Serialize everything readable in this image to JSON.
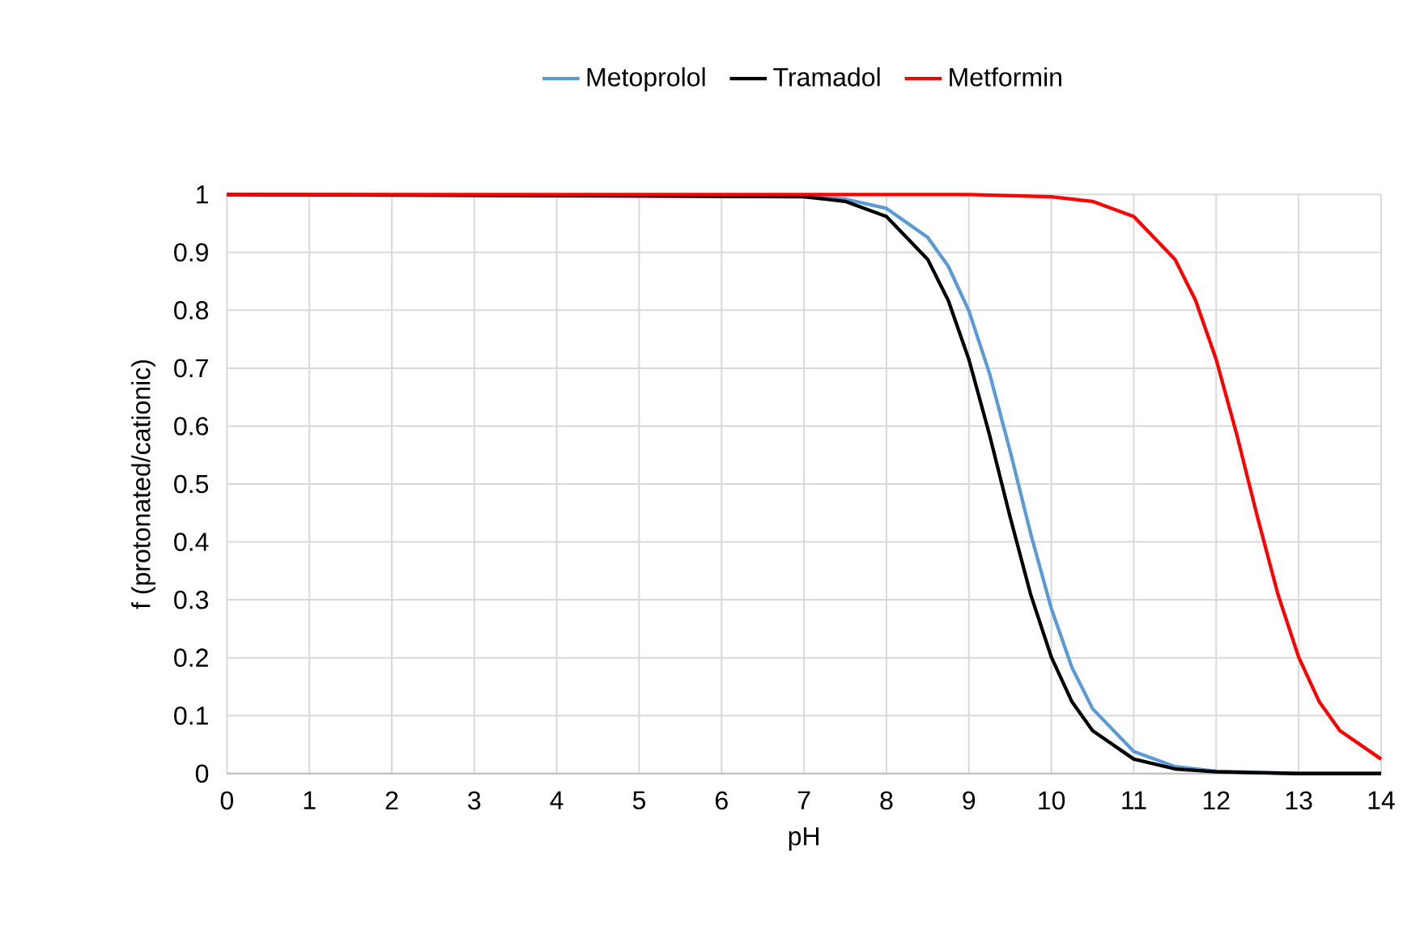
{
  "chart_data": {
    "type": "line",
    "xlabel": "pH",
    "ylabel": "f (protonated/cationic)",
    "xlim": [
      0,
      14
    ],
    "xticks": [
      0,
      1,
      2,
      3,
      4,
      5,
      6,
      7,
      8,
      9,
      10,
      11,
      12,
      13,
      14
    ],
    "ylim": [
      0,
      1
    ],
    "yticks": [
      0,
      0.1,
      0.2,
      0.3,
      0.4,
      0.5,
      0.6,
      0.7,
      0.8,
      0.9,
      1
    ],
    "grid": true,
    "legend": "top",
    "marker": "none",
    "line_style": "solid",
    "series": [
      {
        "name": "Metoprolol",
        "color": "#5b9bd5",
        "x": [
          0,
          7,
          7.5,
          8,
          8.5,
          8.75,
          9,
          9.25,
          9.5,
          9.75,
          10,
          10.25,
          10.5,
          11,
          11.5,
          12,
          13,
          14
        ],
        "values": [
          1,
          0.997,
          0.992,
          0.976,
          0.926,
          0.876,
          0.799,
          0.691,
          0.557,
          0.414,
          0.285,
          0.183,
          0.112,
          0.038,
          0.012,
          0.004,
          0,
          0
        ]
      },
      {
        "name": "Tramadol",
        "color": "#000000",
        "x": [
          0,
          7,
          7.5,
          8,
          8.5,
          8.75,
          9,
          9.25,
          9.5,
          9.75,
          10,
          10.25,
          10.5,
          11,
          11.5,
          12,
          13,
          14
        ],
        "values": [
          1,
          0.996,
          0.988,
          0.962,
          0.888,
          0.817,
          0.715,
          0.585,
          0.443,
          0.309,
          0.201,
          0.124,
          0.074,
          0.025,
          0.008,
          0.003,
          0,
          0
        ]
      },
      {
        "name": "Metformin",
        "color": "#ff0000",
        "x": [
          0,
          9,
          10,
          10.5,
          11,
          11.5,
          11.75,
          12,
          12.25,
          12.5,
          12.75,
          13,
          13.25,
          13.5,
          14
        ],
        "values": [
          1,
          1,
          0.996,
          0.988,
          0.962,
          0.888,
          0.817,
          0.715,
          0.585,
          0.443,
          0.309,
          0.201,
          0.124,
          0.074,
          0.025
        ]
      }
    ]
  }
}
